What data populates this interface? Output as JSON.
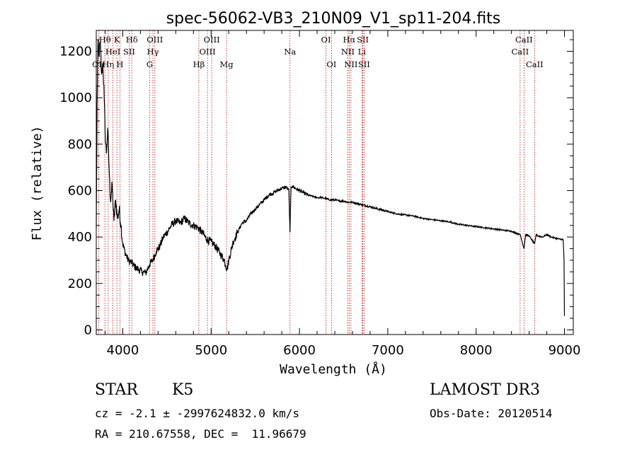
{
  "chart_data": {
    "type": "line",
    "title": "spec-56062-VB3_210N09_V1_sp11-204.fits",
    "xlabel": "Wavelength (Å)",
    "ylabel": "Flux (relative)",
    "xlim": [
      3700,
      9100
    ],
    "ylim": [
      -20,
      1290
    ],
    "xticks": [
      4000,
      5000,
      6000,
      7000,
      8000,
      9000
    ],
    "yticks": [
      0,
      200,
      400,
      600,
      800,
      1000,
      1200
    ],
    "series": [
      {
        "name": "flux",
        "x": [
          3700,
          3710,
          3720,
          3730,
          3745,
          3760,
          3775,
          3790,
          3800,
          3815,
          3830,
          3845,
          3860,
          3880,
          3900,
          3920,
          3940,
          3960,
          3980,
          4000,
          4030,
          4060,
          4100,
          4140,
          4180,
          4220,
          4260,
          4300,
          4340,
          4380,
          4420,
          4460,
          4500,
          4550,
          4600,
          4650,
          4700,
          4750,
          4800,
          4850,
          4900,
          4950,
          5000,
          5050,
          5100,
          5150,
          5180,
          5200,
          5250,
          5300,
          5350,
          5400,
          5450,
          5500,
          5550,
          5600,
          5650,
          5700,
          5750,
          5800,
          5850,
          5880,
          5893,
          5905,
          5920,
          5950,
          6000,
          6050,
          6100,
          6150,
          6200,
          6250,
          6300,
          6350,
          6400,
          6450,
          6500,
          6550,
          6600,
          6650,
          6700,
          6800,
          6900,
          7000,
          7100,
          7200,
          7300,
          7400,
          7500,
          7600,
          7700,
          7800,
          7900,
          8000,
          8100,
          8200,
          8300,
          8400,
          8500,
          8542,
          8560,
          8600,
          8662,
          8680,
          8700,
          8750,
          8800,
          8850,
          8900,
          8950,
          8985,
          8995,
          9000
        ],
        "y": [
          440,
          980,
          1250,
          1180,
          1240,
          1100,
          1150,
          1000,
          850,
          760,
          870,
          700,
          560,
          620,
          470,
          560,
          480,
          520,
          450,
          370,
          330,
          300,
          290,
          270,
          260,
          250,
          245,
          280,
          300,
          340,
          360,
          400,
          420,
          450,
          470,
          460,
          480,
          460,
          450,
          440,
          420,
          390,
          380,
          360,
          330,
          300,
          260,
          300,
          380,
          420,
          460,
          470,
          500,
          520,
          540,
          560,
          580,
          590,
          600,
          610,
          615,
          600,
          420,
          615,
          620,
          610,
          600,
          590,
          580,
          575,
          570,
          570,
          565,
          560,
          560,
          555,
          555,
          550,
          550,
          545,
          540,
          530,
          520,
          510,
          500,
          495,
          490,
          480,
          475,
          470,
          465,
          455,
          450,
          445,
          440,
          435,
          430,
          425,
          410,
          350,
          410,
          405,
          370,
          410,
          405,
          400,
          410,
          400,
          395,
          390,
          390,
          300,
          60
        ]
      }
    ],
    "spectral_lines": [
      {
        "label": "OII",
        "wave": 3727,
        "row": 2
      },
      {
        "label": "Hθ",
        "wave": 3798,
        "row": 0
      },
      {
        "label": "Hη",
        "wave": 3835,
        "row": 2
      },
      {
        "label": "HeI",
        "wave": 3889,
        "row": 1
      },
      {
        "label": "K",
        "wave": 3934,
        "row": 0
      },
      {
        "label": "H",
        "wave": 3968,
        "row": 2
      },
      {
        "label": "SII",
        "wave": 4072,
        "row": 1
      },
      {
        "label": "Hδ",
        "wave": 4102,
        "row": 0
      },
      {
        "label": "G",
        "wave": 4305,
        "row": 2
      },
      {
        "label": "Hγ",
        "wave": 4341,
        "row": 1
      },
      {
        "label": "OIII",
        "wave": 4363,
        "row": 0
      },
      {
        "label": "Hβ",
        "wave": 4861,
        "row": 2
      },
      {
        "label": "OIII",
        "wave": 4959,
        "row": 1
      },
      {
        "label": "OIII",
        "wave": 5007,
        "row": 0
      },
      {
        "label": "Mg",
        "wave": 5175,
        "row": 2
      },
      {
        "label": "Na",
        "wave": 5893,
        "row": 1
      },
      {
        "label": "OI",
        "wave": 6300,
        "row": 0
      },
      {
        "label": "OI",
        "wave": 6363,
        "row": 2
      },
      {
        "label": "NII",
        "wave": 6548,
        "row": 1
      },
      {
        "label": "Hα",
        "wave": 6563,
        "row": 0
      },
      {
        "label": "NII",
        "wave": 6583,
        "row": 2
      },
      {
        "label": "Li",
        "wave": 6707,
        "row": 1
      },
      {
        "label": "SII",
        "wave": 6717,
        "row": 0
      },
      {
        "label": "SII",
        "wave": 6731,
        "row": 2
      },
      {
        "label": "CaII",
        "wave": 8498,
        "row": 1
      },
      {
        "label": "CaII",
        "wave": 8542,
        "row": 0
      },
      {
        "label": "CaII",
        "wave": 8662,
        "row": 2
      }
    ],
    "colors": {
      "data": "#000000",
      "lines": "#cc0000",
      "axes": "#000000"
    }
  },
  "info": {
    "obj_class": "STAR",
    "obj_subclass": "K5",
    "survey": "LAMOST DR3",
    "cz_line": "cz = -2.1 ± -2997624832.0 km/s",
    "obs_date_line": "Obs-Date: 20120514",
    "radec_line": "RA = 210.67558, DEC =  11.96679"
  }
}
